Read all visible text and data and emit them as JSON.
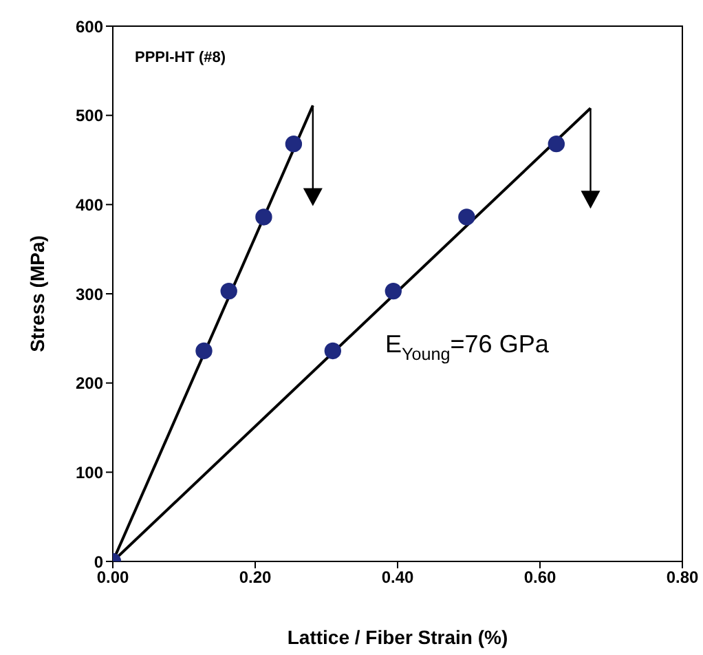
{
  "chart_data": {
    "type": "scatter",
    "xlabel": "Lattice / Fiber Strain (%)",
    "ylabel": "Stress (MPa)",
    "annotations": [
      "PPPI-HT (#8)",
      "E$_{Young}$=76 GPa"
    ],
    "xlim": [
      0,
      0.8
    ],
    "xticks": [
      {
        "value": 0,
        "label": "0.00"
      },
      {
        "value": 0.2,
        "label": "0.20"
      },
      {
        "value": 0.4,
        "label": "0.40"
      },
      {
        "value": 0.6,
        "label": "0.60"
      },
      {
        "value": 0.8,
        "label": "0.80"
      }
    ],
    "ylim": [
      0,
      600
    ],
    "yticks": [
      0,
      100,
      200,
      300,
      400,
      500,
      600
    ],
    "grid": false,
    "legend": false,
    "series": [
      {
        "marker": "circle",
        "color": "#1f2a80",
        "x": [
          0.128,
          0.163,
          0.212,
          0.254
        ],
        "values": [
          236,
          303,
          386,
          468
        ]
      },
      {
        "marker": "circle",
        "color": "#1f2a80",
        "x": [
          0,
          0.309,
          0.394,
          0.497,
          0.623
        ],
        "values": [
          0,
          236,
          303,
          386,
          468
        ]
      },
      {
        "type": "line",
        "marker": "none",
        "color": "#000000",
        "x": [
          0,
          0.281
        ],
        "values": [
          0,
          511
        ]
      },
      {
        "type": "line",
        "marker": "none",
        "color": "#000000",
        "x": [
          0,
          0.671
        ],
        "values": [
          0,
          508
        ]
      }
    ]
  }
}
